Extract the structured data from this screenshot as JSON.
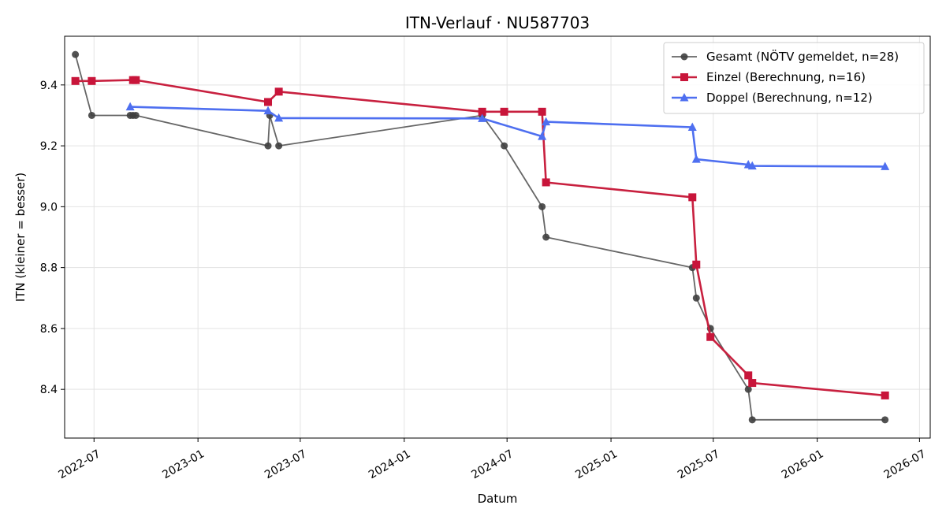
{
  "chart_data": {
    "type": "line",
    "title": "ITN-Verlauf · NU587703",
    "xlabel": "Datum",
    "ylabel": "ITN  (kleiner = besser)",
    "x_type": "date",
    "xlim": [
      "2022-05-10",
      "2026-07-20"
    ],
    "ylim": [
      8.24,
      9.56
    ],
    "x_ticks": [
      "2022-07-01",
      "2023-01-01",
      "2023-07-01",
      "2024-01-01",
      "2024-07-01",
      "2025-01-01",
      "2025-07-01",
      "2026-01-01",
      "2026-07-01"
    ],
    "x_tick_labels": [
      "2022-07",
      "2023-01",
      "2023-07",
      "2024-01",
      "2024-07",
      "2025-01",
      "2025-07",
      "2026-01",
      "2026-07"
    ],
    "y_ticks": [
      8.4,
      8.6,
      8.8,
      9.0,
      9.2,
      9.4
    ],
    "y_tick_labels": [
      "8.4",
      "8.6",
      "8.8",
      "9.0",
      "9.2",
      "9.4"
    ],
    "grid": true,
    "legend_position": "top-right",
    "series": [
      {
        "name": "Gesamt (NÖTV gemeldet, n=28)",
        "color": "#666666",
        "marker": "circle",
        "points": [
          {
            "x": "2022-05-29",
            "y": 9.5
          },
          {
            "x": "2022-06-27",
            "y": 9.3
          },
          {
            "x": "2022-09-03",
            "y": 9.3
          },
          {
            "x": "2022-09-08",
            "y": 9.3
          },
          {
            "x": "2022-09-13",
            "y": 9.3
          },
          {
            "x": "2023-05-05",
            "y": 9.2
          },
          {
            "x": "2023-05-08",
            "y": 9.3
          },
          {
            "x": "2023-05-24",
            "y": 9.2
          },
          {
            "x": "2024-05-18",
            "y": 9.3
          },
          {
            "x": "2024-06-26",
            "y": 9.2
          },
          {
            "x": "2024-09-01",
            "y": 9.0
          },
          {
            "x": "2024-09-08",
            "y": 8.9
          },
          {
            "x": "2025-05-25",
            "y": 8.8
          },
          {
            "x": "2025-06-01",
            "y": 8.7
          },
          {
            "x": "2025-06-26",
            "y": 8.6
          },
          {
            "x": "2025-09-01",
            "y": 8.4
          },
          {
            "x": "2025-09-08",
            "y": 8.3
          },
          {
            "x": "2026-05-01",
            "y": 8.3
          }
        ]
      },
      {
        "name": "Einzel (Berechnung, n=16)",
        "color": "#c8203f",
        "marker": "square",
        "points": [
          {
            "x": "2022-05-29",
            "y": 9.413
          },
          {
            "x": "2022-06-27",
            "y": 9.413
          },
          {
            "x": "2022-09-08",
            "y": 9.416
          },
          {
            "x": "2022-09-13",
            "y": 9.416
          },
          {
            "x": "2023-05-05",
            "y": 9.344
          },
          {
            "x": "2023-05-24",
            "y": 9.378
          },
          {
            "x": "2024-05-18",
            "y": 9.312
          },
          {
            "x": "2024-06-26",
            "y": 9.312
          },
          {
            "x": "2024-09-01",
            "y": 9.312
          },
          {
            "x": "2024-09-08",
            "y": 9.08
          },
          {
            "x": "2025-05-25",
            "y": 9.031
          },
          {
            "x": "2025-06-01",
            "y": 8.81
          },
          {
            "x": "2025-06-26",
            "y": 8.572
          },
          {
            "x": "2025-09-01",
            "y": 8.446
          },
          {
            "x": "2025-09-08",
            "y": 8.421
          },
          {
            "x": "2026-05-01",
            "y": 8.38
          }
        ]
      },
      {
        "name": "Doppel (Berechnung, n=12)",
        "color": "#4e6ff0",
        "marker": "triangle",
        "points": [
          {
            "x": "2022-09-03",
            "y": 9.328
          },
          {
            "x": "2023-05-05",
            "y": 9.315
          },
          {
            "x": "2023-05-24",
            "y": 9.291
          },
          {
            "x": "2024-05-18",
            "y": 9.29
          },
          {
            "x": "2024-09-01",
            "y": 9.231
          },
          {
            "x": "2024-09-08",
            "y": 9.279
          },
          {
            "x": "2025-05-25",
            "y": 9.261
          },
          {
            "x": "2025-06-01",
            "y": 9.156
          },
          {
            "x": "2025-09-01",
            "y": 9.138
          },
          {
            "x": "2025-09-08",
            "y": 9.134
          },
          {
            "x": "2026-05-01",
            "y": 9.132
          }
        ]
      }
    ]
  }
}
